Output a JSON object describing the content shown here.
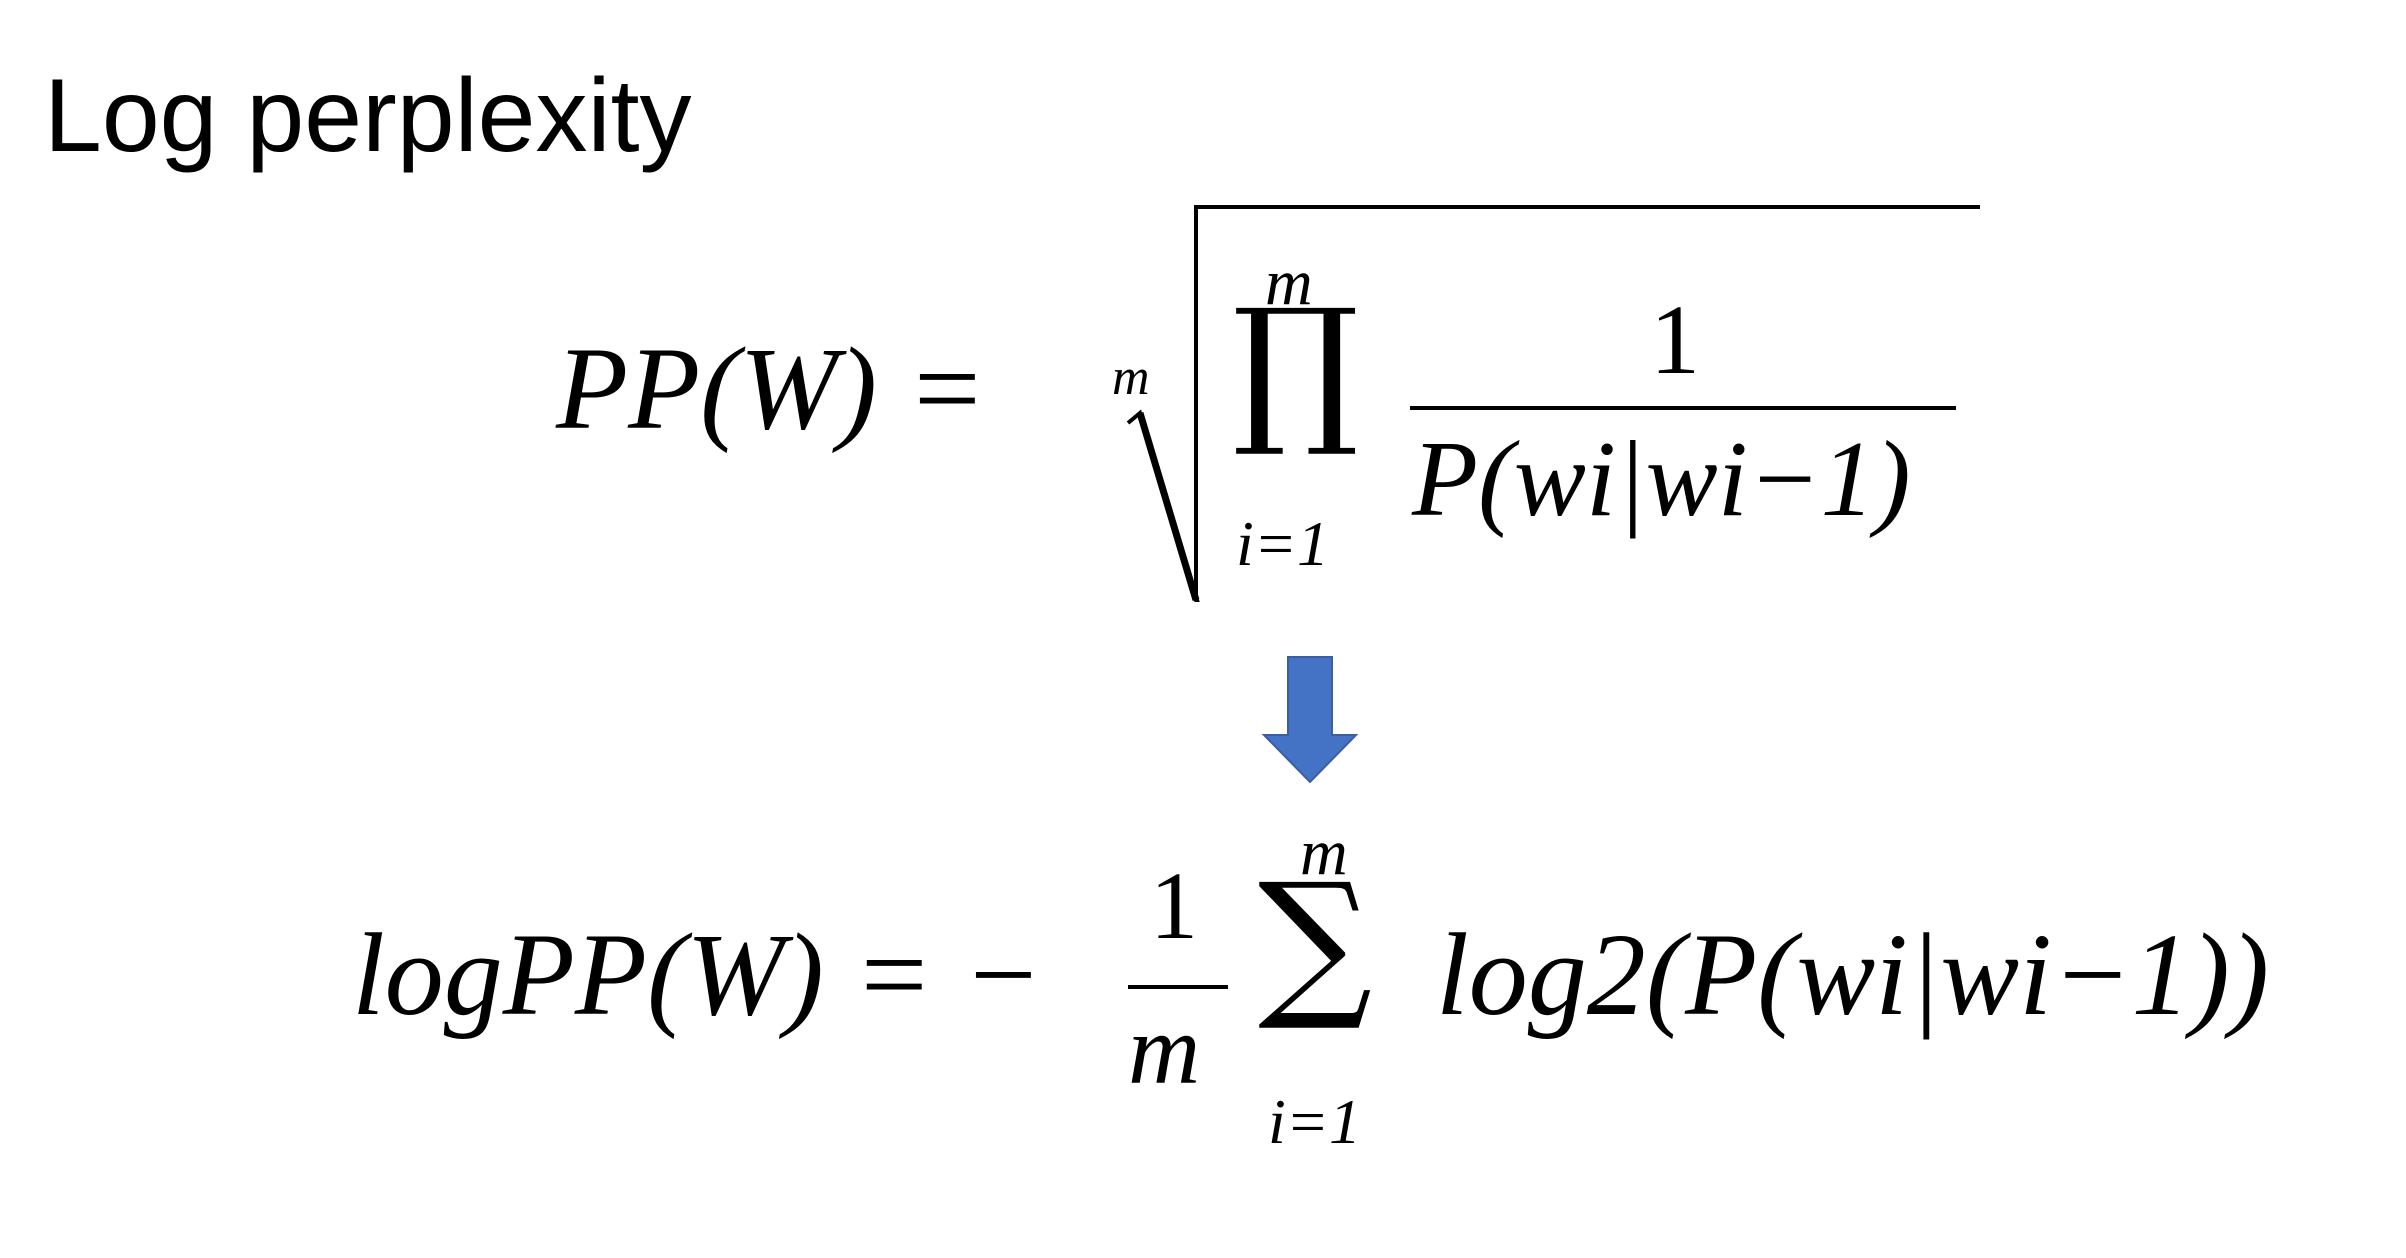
{
  "slide": {
    "title": "Log perplexity"
  },
  "formula1": {
    "lhs": "PP(W) =",
    "root_index": "m",
    "prod_symbol": "∏",
    "prod_upper": "m",
    "prod_lower": "i=1",
    "numerator": "1",
    "denominator": "P(wi|wi−1)"
  },
  "arrow": {
    "icon": "arrow-down-icon",
    "color": "#4472c4",
    "stroke": "#3a5fa0"
  },
  "formula2": {
    "lhs": "logPP(W) = −",
    "frac_num": "1",
    "frac_den": "m",
    "sum_symbol": "∑",
    "sum_upper": "m",
    "sum_lower": "i=1",
    "rhs": "log2(P(wi|wi−1))"
  }
}
